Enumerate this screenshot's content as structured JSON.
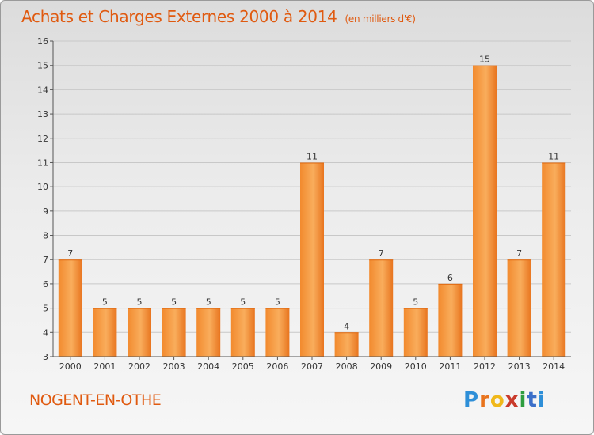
{
  "header": {
    "title": "Achats et Charges Externes 2000 à 2014",
    "subtitle": "(en milliers d'€)"
  },
  "footer": {
    "location": "NOGENT-EN-OTHE",
    "brand": [
      "P",
      "r",
      "o",
      "x",
      "i",
      "t",
      "i"
    ]
  },
  "colors": {
    "title": "#e05a10",
    "bar_light": "#f7a34e",
    "bar_dark": "#e8751f",
    "axis": "#555555",
    "grid": "#c8c8c8"
  },
  "chart_data": {
    "type": "bar",
    "title": "Achats et Charges Externes 2000 à 2014",
    "subtitle": "(en milliers d'€)",
    "categories": [
      "2000",
      "2001",
      "2002",
      "2003",
      "2004",
      "2005",
      "2006",
      "2007",
      "2008",
      "2009",
      "2010",
      "2011",
      "2012",
      "2013",
      "2014"
    ],
    "values": [
      7,
      5,
      5,
      5,
      5,
      5,
      5,
      11,
      4,
      7,
      5,
      6,
      15,
      7,
      11
    ],
    "xlabel": "",
    "ylabel": "",
    "ylim": [
      3,
      16
    ],
    "yticks": [
      3,
      4,
      5,
      6,
      7,
      8,
      9,
      10,
      11,
      12,
      13,
      14,
      15,
      16
    ],
    "grid": true,
    "legend": "none"
  }
}
